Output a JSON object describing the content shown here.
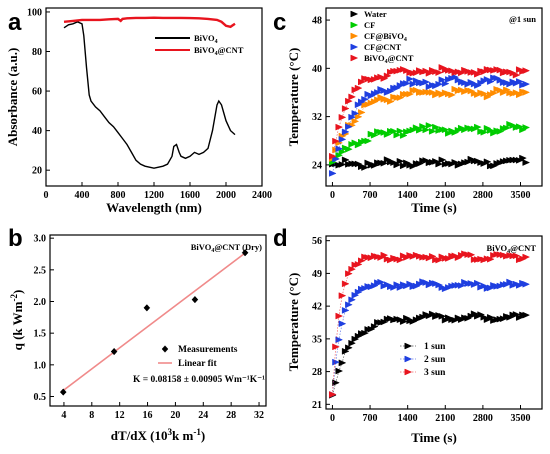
{
  "chart_data": [
    {
      "panel": "a",
      "type": "line",
      "xlabel": "Wavelength (nm)",
      "ylabel": "Absorbance (a.u.)",
      "xlim": [
        0,
        2400
      ],
      "ylim": [
        12,
        102
      ],
      "xticks": [
        0,
        400,
        800,
        1200,
        1600,
        2000,
        2400
      ],
      "yticks": [
        20,
        40,
        60,
        80,
        100
      ],
      "legend_position": "top-right",
      "series": [
        {
          "name": "BiVO4",
          "color": "#000000",
          "x": [
            200,
            250,
            300,
            350,
            400,
            420,
            450,
            480,
            500,
            550,
            600,
            650,
            700,
            750,
            800,
            850,
            900,
            950,
            1000,
            1050,
            1100,
            1150,
            1200,
            1250,
            1300,
            1350,
            1400,
            1420,
            1450,
            1480,
            1500,
            1550,
            1600,
            1650,
            1700,
            1750,
            1800,
            1850,
            1900,
            1920,
            1950,
            2000,
            2050,
            2100
          ],
          "y": [
            92,
            93.5,
            94,
            95,
            94,
            88,
            72,
            58,
            55,
            52,
            50,
            47,
            44,
            42,
            39,
            36,
            33,
            29,
            25,
            23,
            22,
            21.5,
            21,
            21.5,
            22,
            23,
            27,
            32,
            33,
            29,
            27,
            26,
            27,
            29,
            28,
            29,
            31,
            40,
            53,
            55,
            53,
            45,
            40,
            38
          ]
        },
        {
          "name": "BiVO4@CNT",
          "color": "#e8141e",
          "x": [
            200,
            300,
            400,
            500,
            600,
            700,
            800,
            830,
            850,
            900,
            1000,
            1100,
            1200,
            1300,
            1400,
            1500,
            1600,
            1700,
            1800,
            1900,
            1950,
            2000,
            2050,
            2100
          ],
          "y": [
            95,
            95.5,
            96,
            96,
            96,
            96.3,
            96.5,
            95.5,
            96.5,
            96.8,
            97,
            97,
            97.1,
            97,
            97,
            97,
            96.9,
            96.8,
            96.5,
            96,
            95,
            93,
            92.5,
            94
          ]
        }
      ]
    },
    {
      "panel": "b",
      "type": "scatter",
      "title": "BiVO4@CNT (Dry)",
      "xlabel": "dT/dX (10³k m⁻¹)",
      "ylabel": "q (k Wm⁻²)",
      "xlim": [
        2,
        33
      ],
      "ylim": [
        0.35,
        3.05
      ],
      "xticks": [
        4,
        8,
        12,
        16,
        20,
        24,
        28,
        32
      ],
      "yticks": [
        0.5,
        1.0,
        1.5,
        2.0,
        2.5,
        3.0
      ],
      "ytick_labels": [
        "0.5",
        "1.0",
        "1.5",
        "2.0",
        "2.5",
        "3.0"
      ],
      "legend_position": "bottom-right",
      "series": [
        {
          "name": "Measurements",
          "color": "#000000",
          "x": [
            3.9,
            11.2,
            15.9,
            22.8,
            30.0
          ],
          "y": [
            0.57,
            1.21,
            1.9,
            2.03,
            2.77
          ]
        },
        {
          "name": "Linear fit",
          "color": "#f08a8a",
          "x": [
            3.6,
            30.3
          ],
          "y": [
            0.57,
            2.79
          ]
        }
      ],
      "annotation": "K = 0.08158 ± 0.00905 Wm⁻¹K⁻¹"
    },
    {
      "panel": "c",
      "type": "scatter",
      "title": "@1 sun",
      "xlabel": "Time (s)",
      "ylabel": "Temperature (°C)",
      "xlim": [
        -120,
        3900
      ],
      "ylim": [
        20.5,
        50
      ],
      "xticks": [
        0,
        700,
        1400,
        2100,
        2800,
        3500
      ],
      "yticks": [
        24,
        32,
        40,
        48
      ],
      "legend_position": "top-left",
      "series": [
        {
          "name": "Water",
          "color": "#000000",
          "start": 24.0,
          "end": 24.4,
          "tau": 600
        },
        {
          "name": "CF",
          "color": "#00cc00",
          "start": 24.5,
          "end": 30.0,
          "tau": 520
        },
        {
          "name": "CF@BiVO4",
          "color": "#ff8c00",
          "start": 25.0,
          "end": 36.0,
          "tau": 420
        },
        {
          "name": "CF@CNT",
          "color": "#1f3fe0",
          "start": 22.6,
          "end": 37.8,
          "tau": 380
        },
        {
          "name": "BiVO4@CNT",
          "color": "#e8141e",
          "start": 25.5,
          "end": 39.6,
          "tau": 300
        }
      ]
    },
    {
      "panel": "d",
      "type": "scatter",
      "title": "BiVO4@CNT",
      "xlabel": "Time (s)",
      "ylabel": "Temperature (°C)",
      "xlim": [
        -120,
        3900
      ],
      "ylim": [
        20,
        57
      ],
      "xticks": [
        0,
        700,
        1400,
        2100,
        2800,
        3500
      ],
      "yticks": [
        21,
        28,
        35,
        42,
        49,
        56
      ],
      "legend_position": "center-right",
      "series": [
        {
          "name": "1 sun",
          "color": "#000000",
          "start": 23.0,
          "end": 39.6,
          "tau": 330
        },
        {
          "name": "2 sun",
          "color": "#1f3fe0",
          "start": 23.0,
          "end": 46.5,
          "tau": 170
        },
        {
          "name": "3 sun",
          "color": "#e8141e",
          "start": 23.0,
          "end": 52.5,
          "tau": 140
        }
      ]
    }
  ]
}
